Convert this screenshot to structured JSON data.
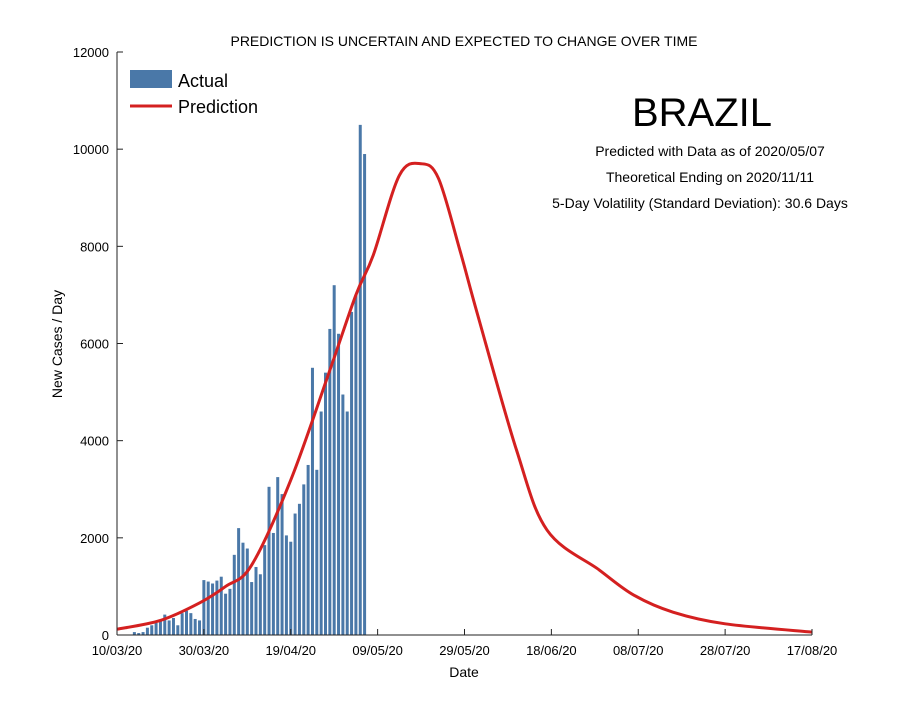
{
  "chart_data": {
    "type": "bar+line",
    "title": "PREDICTION IS UNCERTAIN AND EXPECTED TO CHANGE OVER TIME",
    "xlabel": "Date",
    "ylabel": "New Cases / Day",
    "ylim": [
      0,
      12000
    ],
    "xlim_days": [
      0,
      160
    ],
    "yticks": [
      0,
      2000,
      4000,
      6000,
      8000,
      10000,
      12000
    ],
    "ytick_labels": [
      "0",
      "2000",
      "4000",
      "6000",
      "8000",
      "10000",
      "12000"
    ],
    "xticks_days": [
      0,
      20,
      40,
      60,
      80,
      100,
      120,
      140,
      160
    ],
    "xtick_labels": [
      "10/03/20",
      "30/03/20",
      "19/04/20",
      "09/05/20",
      "29/05/20",
      "18/06/20",
      "08/07/20",
      "28/07/20",
      "17/08/20"
    ],
    "legend": {
      "placement": "top-left",
      "entries": [
        "Actual",
        "Prediction"
      ]
    },
    "series": [
      {
        "name": "Actual",
        "type": "bar",
        "color": "#4a78a8",
        "start_day": 4,
        "values": [
          60,
          40,
          60,
          150,
          200,
          250,
          280,
          420,
          300,
          350,
          200,
          450,
          500,
          450,
          330,
          300,
          1130,
          1100,
          1060,
          1120,
          1200,
          850,
          950,
          1650,
          2200,
          1900,
          1780,
          1090,
          1400,
          1250,
          1850,
          3050,
          2100,
          3250,
          2900,
          2050,
          1920,
          2500,
          2700,
          3100,
          3500,
          5500,
          3400,
          4600,
          5400,
          6300,
          7200,
          6200,
          4950,
          4600,
          6650,
          7000,
          10500,
          9900
        ]
      },
      {
        "name": "Prediction",
        "type": "line",
        "color": "#d42020",
        "x": [
          0,
          10,
          19,
          25,
          31,
          40,
          49,
          55,
          59,
          65,
          70,
          74,
          79,
          83,
          92,
          99,
          111,
          119,
          128,
          140,
          160
        ],
        "values": [
          120,
          300,
          660,
          1000,
          1440,
          3190,
          5450,
          7000,
          7820,
          9460,
          9700,
          9400,
          7900,
          6600,
          3800,
          2160,
          1340,
          820,
          470,
          230,
          60
        ]
      }
    ],
    "annotations": {
      "country": "BRAZIL",
      "line1": "Predicted with Data as of 2020/05/07",
      "line2": "Theoretical Ending on 2020/11/11",
      "line3": "5-Day Volatility (Standard Deviation): 30.6 Days"
    }
  }
}
